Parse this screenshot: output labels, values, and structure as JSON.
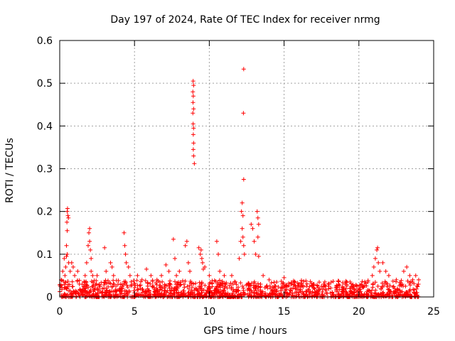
{
  "chart_data": {
    "type": "scatter",
    "title": "Day 197 of 2024, Rate Of TEC Index for receiver nrmg",
    "xlabel": "GPS time / hours",
    "ylabel": "ROTI / TECUs",
    "xlim": [
      0,
      25
    ],
    "ylim": [
      0,
      0.6
    ],
    "xticks": [
      0,
      5,
      10,
      15,
      20,
      25
    ],
    "yticks": [
      0,
      0.1,
      0.2,
      0.3,
      0.4,
      0.5,
      0.6
    ],
    "xtick_labels": [
      "0",
      "5",
      "10",
      "15",
      "20",
      "25"
    ],
    "ytick_labels": [
      "0",
      "0.1",
      "0.2",
      "0.3",
      "0.4",
      "0.5",
      "0.6"
    ],
    "grid": true,
    "marker": "+",
    "color": "#ff0000",
    "background_band": {
      "x_range": [
        0,
        24
      ],
      "y_range": [
        0,
        0.03
      ],
      "note": "dense cluster of low ROTI points throughout the day"
    },
    "series": [
      {
        "name": "nrmg",
        "points": [
          [
            0.1,
            0.04
          ],
          [
            0.2,
            0.06
          ],
          [
            0.3,
            0.09
          ],
          [
            0.35,
            0.05
          ],
          [
            0.4,
            0.07
          ],
          [
            0.5,
            0.2
          ],
          [
            0.55,
            0.19
          ],
          [
            0.5,
            0.155
          ],
          [
            0.45,
            0.12
          ],
          [
            0.5,
            0.1
          ],
          [
            0.6,
            0.08
          ],
          [
            0.7,
            0.06
          ],
          [
            0.8,
            0.08
          ],
          [
            0.9,
            0.07
          ],
          [
            1.0,
            0.05
          ],
          [
            1.2,
            0.06
          ],
          [
            0.52,
            0.207
          ],
          [
            0.48,
            0.175
          ],
          [
            0.58,
            0.185
          ],
          [
            0.45,
            0.095
          ],
          [
            1.7,
            0.05
          ],
          [
            1.8,
            0.08
          ],
          [
            1.9,
            0.12
          ],
          [
            1.95,
            0.15
          ],
          [
            2.0,
            0.16
          ],
          [
            2.0,
            0.13
          ],
          [
            2.05,
            0.11
          ],
          [
            2.1,
            0.09
          ],
          [
            2.1,
            0.06
          ],
          [
            2.2,
            0.05
          ],
          [
            2.5,
            0.05
          ],
          [
            3.0,
            0.115
          ],
          [
            3.1,
            0.06
          ],
          [
            3.4,
            0.08
          ],
          [
            3.5,
            0.07
          ],
          [
            3.6,
            0.05
          ],
          [
            4.3,
            0.15
          ],
          [
            4.35,
            0.12
          ],
          [
            4.4,
            0.1
          ],
          [
            4.45,
            0.08
          ],
          [
            4.6,
            0.07
          ],
          [
            4.7,
            0.05
          ],
          [
            5.2,
            0.05
          ],
          [
            5.5,
            0.04
          ],
          [
            5.8,
            0.065
          ],
          [
            6.1,
            0.05
          ],
          [
            6.5,
            0.04
          ],
          [
            6.8,
            0.05
          ],
          [
            7.1,
            0.075
          ],
          [
            7.3,
            0.06
          ],
          [
            7.6,
            0.135
          ],
          [
            7.7,
            0.09
          ],
          [
            7.8,
            0.05
          ],
          [
            8.0,
            0.06
          ],
          [
            8.4,
            0.12
          ],
          [
            8.5,
            0.13
          ],
          [
            8.6,
            0.08
          ],
          [
            8.7,
            0.06
          ],
          [
            8.92,
            0.505
          ],
          [
            8.95,
            0.495
          ],
          [
            8.9,
            0.48
          ],
          [
            8.93,
            0.47
          ],
          [
            8.91,
            0.455
          ],
          [
            8.95,
            0.44
          ],
          [
            8.9,
            0.43
          ],
          [
            8.92,
            0.405
          ],
          [
            8.95,
            0.395
          ],
          [
            8.93,
            0.38
          ],
          [
            8.95,
            0.36
          ],
          [
            8.93,
            0.345
          ],
          [
            8.95,
            0.33
          ],
          [
            9.0,
            0.312
          ],
          [
            9.3,
            0.115
          ],
          [
            9.4,
            0.1
          ],
          [
            9.45,
            0.11
          ],
          [
            9.5,
            0.09
          ],
          [
            9.55,
            0.08
          ],
          [
            9.6,
            0.065
          ],
          [
            9.7,
            0.07
          ],
          [
            10.0,
            0.05
          ],
          [
            10.5,
            0.13
          ],
          [
            10.6,
            0.1
          ],
          [
            10.7,
            0.06
          ],
          [
            11.0,
            0.05
          ],
          [
            11.5,
            0.05
          ],
          [
            12.0,
            0.09
          ],
          [
            12.1,
            0.13
          ],
          [
            12.15,
            0.2
          ],
          [
            12.2,
            0.22
          ],
          [
            12.25,
            0.19
          ],
          [
            12.2,
            0.16
          ],
          [
            12.25,
            0.14
          ],
          [
            12.3,
            0.12
          ],
          [
            12.35,
            0.1
          ],
          [
            12.3,
            0.275
          ],
          [
            12.28,
            0.43
          ],
          [
            12.3,
            0.533
          ],
          [
            12.8,
            0.17
          ],
          [
            12.9,
            0.16
          ],
          [
            13.0,
            0.13
          ],
          [
            13.1,
            0.1
          ],
          [
            13.2,
            0.2
          ],
          [
            13.25,
            0.185
          ],
          [
            13.3,
            0.17
          ],
          [
            13.25,
            0.14
          ],
          [
            13.3,
            0.095
          ],
          [
            13.6,
            0.05
          ],
          [
            14.0,
            0.04
          ],
          [
            14.5,
            0.035
          ],
          [
            15.0,
            0.045
          ],
          [
            15.5,
            0.03
          ],
          [
            16.0,
            0.03
          ],
          [
            16.5,
            0.025
          ],
          [
            17.0,
            0.03
          ],
          [
            17.5,
            0.025
          ],
          [
            18.0,
            0.03
          ],
          [
            18.5,
            0.025
          ],
          [
            19.0,
            0.02
          ],
          [
            19.5,
            0.025
          ],
          [
            20.0,
            0.02
          ],
          [
            20.6,
            0.035
          ],
          [
            20.9,
            0.05
          ],
          [
            21.0,
            0.07
          ],
          [
            21.1,
            0.09
          ],
          [
            21.2,
            0.11
          ],
          [
            21.25,
            0.115
          ],
          [
            21.3,
            0.08
          ],
          [
            21.4,
            0.06
          ],
          [
            21.6,
            0.08
          ],
          [
            21.8,
            0.06
          ],
          [
            22.0,
            0.05
          ],
          [
            22.5,
            0.04
          ],
          [
            23.0,
            0.06
          ],
          [
            23.2,
            0.07
          ],
          [
            23.4,
            0.05
          ],
          [
            23.6,
            0.04
          ],
          [
            23.8,
            0.05
          ],
          [
            24.0,
            0.04
          ]
        ]
      }
    ]
  }
}
